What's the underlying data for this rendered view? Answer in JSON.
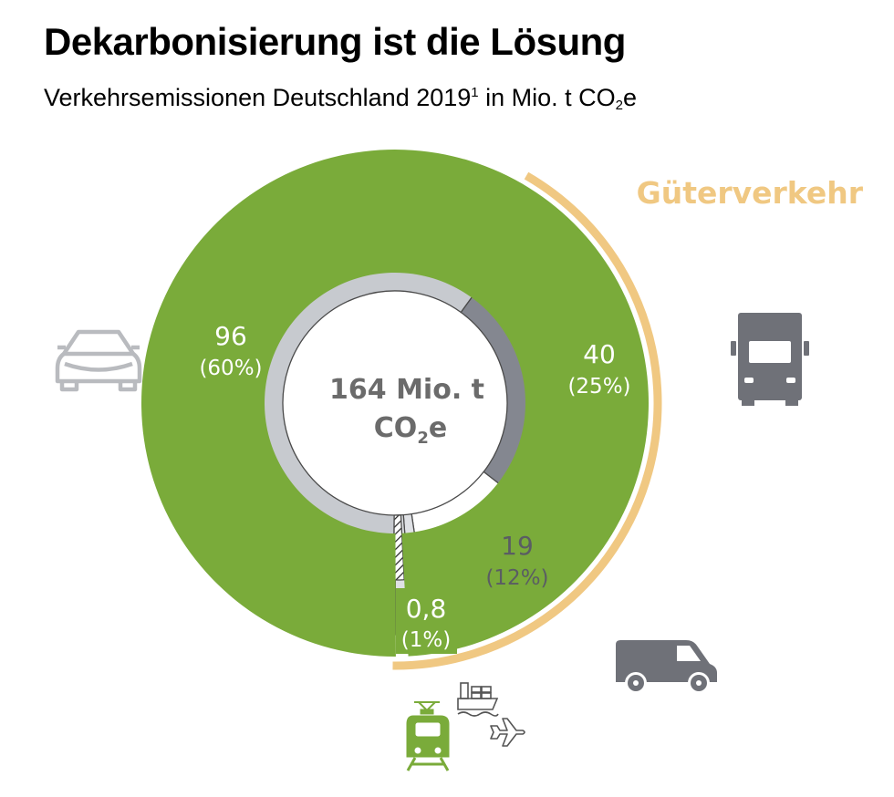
{
  "header": {
    "title": "Dekarbonisierung ist die Lösung",
    "subtitle_main": "Verkehrsemissionen Deutschland 2019",
    "subtitle_footnote": "1",
    "subtitle_unit_prefix": " in Mio. t CO",
    "subtitle_unit_sub": "2",
    "subtitle_unit_suffix": "e"
  },
  "colors": {
    "pkw": "#c7cacf",
    "lkw": "#848790",
    "lnf": "#ffffff",
    "sliver": "#dfe1e5",
    "rail": "#7aab3a",
    "freight_arc": "#f0c882",
    "outline": "#4a4a4a",
    "label_dark": "#5a5d63",
    "center_text": "#6b6b6b",
    "icon_gray": "#6f7178",
    "icon_light": "#b9bbbf"
  },
  "chart_data": {
    "type": "pie",
    "variant": "donut",
    "title": "Dekarbonisierung ist die Lösung",
    "subtitle": "Verkehrsemissionen Deutschland 2019¹ in Mio. t CO₂e",
    "total": 164,
    "center_label_line1": "164 Mio. t",
    "center_label_line2_prefix": "CO",
    "center_label_line2_sub": "2",
    "center_label_line2_suffix": "e",
    "segments": [
      {
        "name": "Pkw",
        "value": 96,
        "percent": 60,
        "label_value": "96",
        "label_percent": "(60%)",
        "icon": "car-icon"
      },
      {
        "name": "Lkw",
        "value": 40,
        "percent": 25,
        "label_value": "40",
        "label_percent": "(25%)",
        "icon": "truck-icon"
      },
      {
        "name": "Leichte Nutzfahrzeuge",
        "value": 19,
        "percent": 12,
        "label_value": "19",
        "label_percent": "(12%)",
        "icon": "van-icon"
      },
      {
        "name": "Schifffahrt",
        "value": 2,
        "percent": 1,
        "icon": "ship-icon"
      },
      {
        "name": "Luftverkehr",
        "value": 2,
        "percent": 1,
        "icon": "plane-icon"
      },
      {
        "name": "Schiene",
        "value": 0.8,
        "percent": 1,
        "label_value": "0,8",
        "label_percent": "(1%)",
        "icon": "train-icon"
      }
    ],
    "group_annotation": {
      "label": "Güterverkehr",
      "covers": [
        "Lkw",
        "Leichte Nutzfahrzeuge",
        "Schifffahrt",
        "Luftverkehr",
        "Schiene"
      ]
    }
  }
}
